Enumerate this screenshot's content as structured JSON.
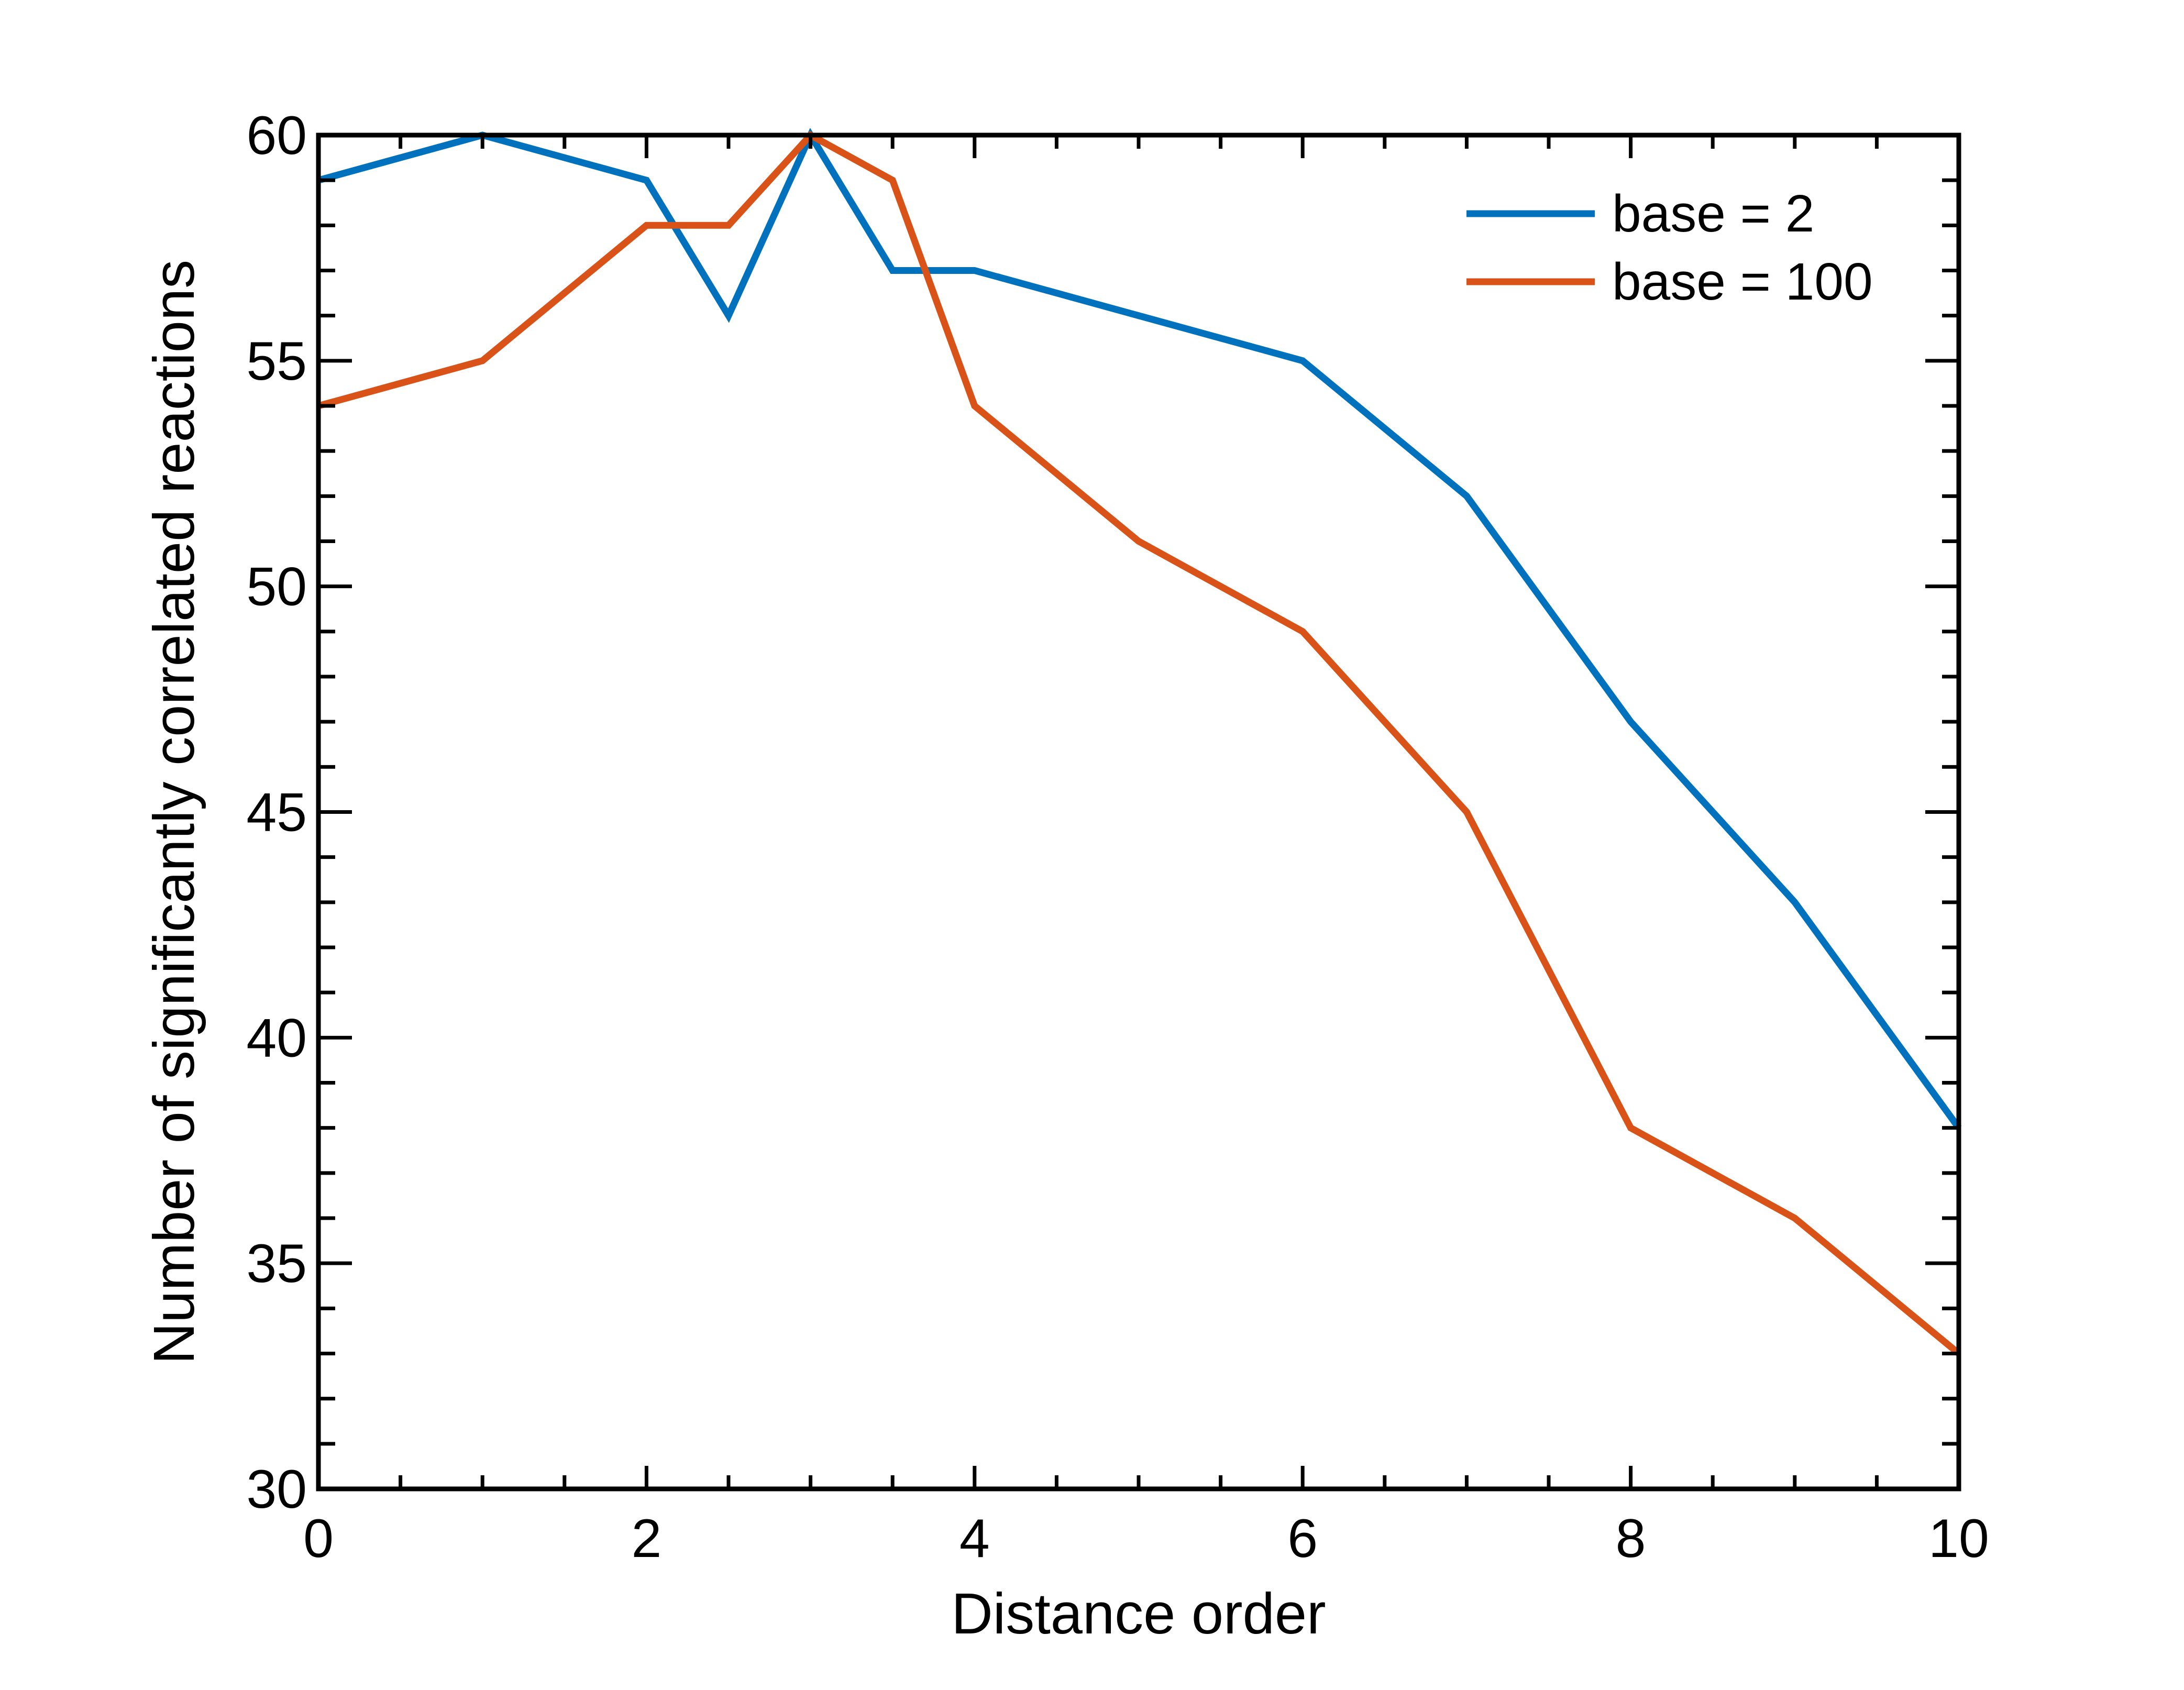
{
  "chart_data": {
    "type": "line",
    "title": "",
    "xlabel": "Distance order",
    "ylabel": "Number of significantly correlated reactions",
    "xlim": [
      0,
      10
    ],
    "ylim": [
      30,
      60
    ],
    "x_major_ticks": [
      0,
      2,
      4,
      6,
      8,
      10
    ],
    "x_minor_step": 0.5,
    "y_major_ticks": [
      30,
      35,
      40,
      45,
      50,
      55,
      60
    ],
    "y_minor_step": 1,
    "grid": false,
    "legend_position": "top-right",
    "series": [
      {
        "name": "base = 2",
        "color": "#0072BD",
        "x": [
          0,
          1,
          2,
          2.5,
          3,
          3.5,
          4,
          5,
          6,
          7,
          8,
          9,
          10
        ],
        "y": [
          59,
          60,
          59,
          56,
          60,
          57,
          57,
          56,
          55,
          52,
          47,
          43,
          38
        ]
      },
      {
        "name": "base = 100",
        "color": "#D95319",
        "x": [
          0,
          1,
          2,
          2.5,
          3,
          3.5,
          4,
          5,
          6,
          7,
          8,
          9,
          10
        ],
        "y": [
          54,
          55,
          58,
          58,
          60,
          59,
          54,
          51,
          49,
          45,
          38,
          36,
          33
        ]
      }
    ]
  }
}
